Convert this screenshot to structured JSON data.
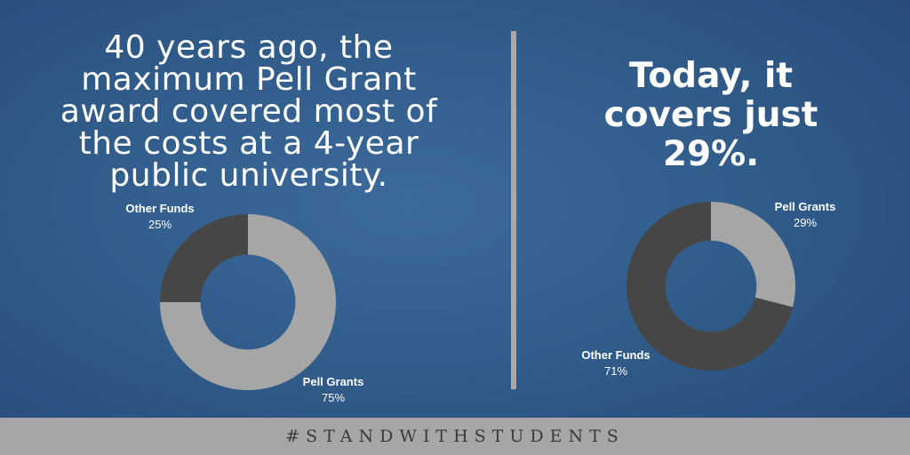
{
  "left": {
    "headline_lines": [
      "40 years ago, the",
      "maximum Pell Grant",
      "award covered most of",
      "the costs at a 4-year",
      "public university."
    ]
  },
  "right": {
    "headline_lines": [
      "Today, it",
      "covers just",
      "29%."
    ]
  },
  "colors": {
    "pell": "#a6a6a6",
    "other": "#464646",
    "background": "#2f5a88",
    "divider": "#a9a9a9"
  },
  "footer": {
    "hashtag": "#STANDWITHSTUDENTS"
  },
  "chart_data": [
    {
      "type": "pie",
      "variant": "donut",
      "slices": [
        {
          "label": "Pell Grants",
          "value": 75,
          "value_label": "75%",
          "color": "#a6a6a6"
        },
        {
          "label": "Other Funds",
          "value": 25,
          "value_label": "25%",
          "color": "#464646"
        }
      ]
    },
    {
      "type": "pie",
      "variant": "donut",
      "slices": [
        {
          "label": "Pell Grants",
          "value": 29,
          "value_label": "29%",
          "color": "#a6a6a6"
        },
        {
          "label": "Other Funds",
          "value": 71,
          "value_label": "71%",
          "color": "#464646"
        }
      ]
    }
  ]
}
